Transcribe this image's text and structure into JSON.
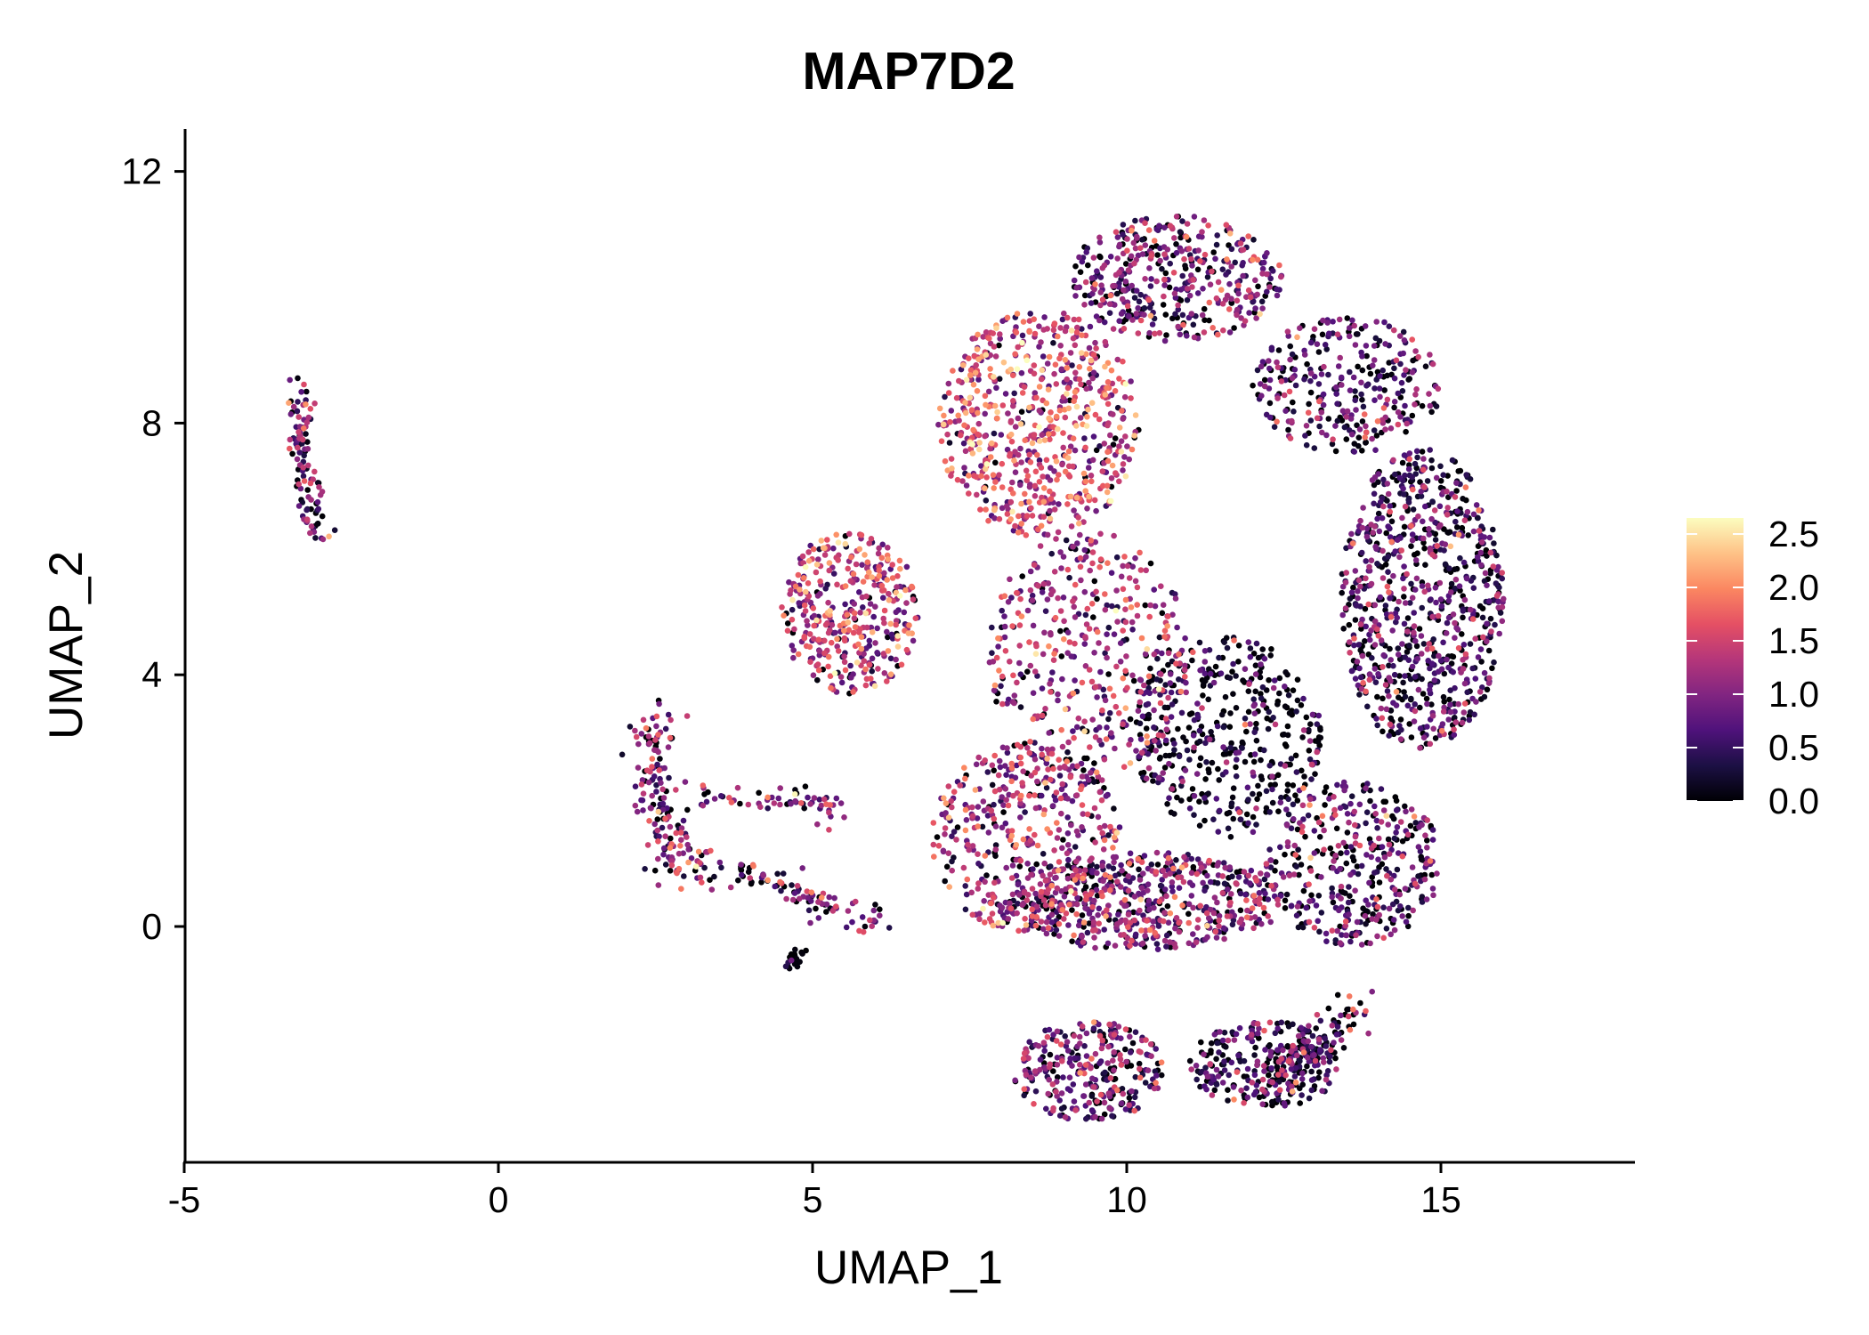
{
  "chart_data": {
    "type": "scatter",
    "title": "MAP7D2",
    "xlabel": "UMAP_1",
    "ylabel": "UMAP_2",
    "xlim": [
      -5,
      18
    ],
    "ylim": [
      -3.7,
      12.8
    ],
    "x_ticks": [
      -5,
      0,
      5,
      10,
      15
    ],
    "x_tick_labels": [
      "-5",
      "0",
      "5",
      "10",
      "15"
    ],
    "y_ticks": [
      0,
      4,
      8,
      12
    ],
    "y_tick_labels": [
      "0",
      "4",
      "8",
      "12"
    ],
    "grid": false,
    "legend": {
      "placement": "right",
      "ticks": [
        0.0,
        0.5,
        1.0,
        1.5,
        2.0,
        2.5
      ],
      "tick_labels": [
        "0.0",
        "0.5",
        "1.0",
        "1.5",
        "2.0",
        "2.5"
      ],
      "range": [
        0,
        2.65
      ]
    },
    "colormap": [
      "#000004",
      "#1c1044",
      "#4f127b",
      "#812581",
      "#b5367a",
      "#e55064",
      "#fb8761",
      "#fec287",
      "#fcfdbf"
    ],
    "regions": [
      {
        "name": "small cluster top-left",
        "shape": "strip",
        "points": [
          [
            -3.15,
            8.7
          ],
          [
            -3.1,
            7.5
          ],
          [
            -2.85,
            6.1
          ]
        ],
        "width": 0.22,
        "n": 110,
        "mean_expr": 0.8
      },
      {
        "name": "left cluster upper arc",
        "shape": "strip",
        "points": [
          [
            2.55,
            3.4
          ],
          [
            2.45,
            2.4
          ],
          [
            2.7,
            1.3
          ],
          [
            3.2,
            0.8
          ]
        ],
        "width": 0.35,
        "n": 170,
        "mean_expr": 0.9
      },
      {
        "name": "left cluster tail",
        "shape": "strip",
        "points": [
          [
            3.2,
            2.1
          ],
          [
            4.2,
            2.0
          ],
          [
            5.1,
            1.95
          ],
          [
            5.35,
            1.85
          ]
        ],
        "width": 0.22,
        "n": 60,
        "mean_expr": 1.0
      },
      {
        "name": "left cluster lower tail",
        "shape": "strip",
        "points": [
          [
            3.7,
            1.0
          ],
          [
            4.6,
            0.6
          ],
          [
            5.2,
            0.3
          ],
          [
            6.2,
            0.05
          ]
        ],
        "width": 0.25,
        "n": 90,
        "mean_expr": 0.7
      },
      {
        "name": "left cluster bottom blob",
        "shape": "strip",
        "points": [
          [
            4.8,
            -0.4
          ],
          [
            4.6,
            -0.65
          ]
        ],
        "width": 0.15,
        "n": 22,
        "mean_expr": 0.05
      },
      {
        "name": "main cluster left bulge",
        "shape": "ellipse",
        "center": [
          5.6,
          5.0
        ],
        "radii": [
          1.1,
          1.3
        ],
        "n": 380,
        "mean_expr": 1.3
      },
      {
        "name": "main cluster upper left",
        "shape": "ellipse",
        "center": [
          8.6,
          8.0
        ],
        "radii": [
          1.6,
          1.8
        ],
        "n": 650,
        "mean_expr": 1.4
      },
      {
        "name": "main cluster top",
        "shape": "ellipse",
        "center": [
          10.8,
          10.3
        ],
        "radii": [
          1.7,
          1.0
        ],
        "n": 420,
        "mean_expr": 0.9
      },
      {
        "name": "main cluster top right",
        "shape": "ellipse",
        "center": [
          13.5,
          8.6
        ],
        "radii": [
          1.5,
          1.1
        ],
        "n": 300,
        "mean_expr": 0.7
      },
      {
        "name": "main cluster right",
        "shape": "ellipse",
        "center": [
          14.7,
          5.2
        ],
        "radii": [
          1.3,
          2.4
        ],
        "n": 800,
        "mean_expr": 0.6
      },
      {
        "name": "main cluster center",
        "shape": "ellipse",
        "center": [
          9.4,
          4.3
        ],
        "radii": [
          1.6,
          2.0
        ],
        "n": 420,
        "mean_expr": 1.1
      },
      {
        "name": "main cluster center right",
        "shape": "ellipse",
        "center": [
          11.6,
          3.0
        ],
        "radii": [
          1.5,
          1.6
        ],
        "n": 420,
        "mean_expr": 0.3
      },
      {
        "name": "main cluster lower left",
        "shape": "ellipse",
        "center": [
          8.4,
          1.4
        ],
        "radii": [
          1.5,
          1.5
        ],
        "n": 430,
        "mean_expr": 1.1
      },
      {
        "name": "main cluster lower center",
        "shape": "ellipse",
        "center": [
          10.3,
          0.4
        ],
        "radii": [
          2.2,
          0.8
        ],
        "n": 550,
        "mean_expr": 0.9
      },
      {
        "name": "main cluster lower right",
        "shape": "ellipse",
        "center": [
          13.6,
          1.0
        ],
        "radii": [
          1.4,
          1.3
        ],
        "n": 380,
        "mean_expr": 0.7
      },
      {
        "name": "bottom left lobe",
        "shape": "ellipse",
        "center": [
          9.4,
          -2.3
        ],
        "radii": [
          1.2,
          0.8
        ],
        "n": 300,
        "mean_expr": 0.8
      },
      {
        "name": "bottom right lobe",
        "shape": "ellipse",
        "center": [
          12.2,
          -2.2
        ],
        "radii": [
          1.2,
          0.7
        ],
        "n": 260,
        "mean_expr": 0.5
      },
      {
        "name": "bottom right arm",
        "shape": "strip",
        "points": [
          [
            12.0,
            -2.6
          ],
          [
            12.9,
            -2.0
          ],
          [
            13.7,
            -1.3
          ]
        ],
        "width": 0.35,
        "n": 110,
        "mean_expr": 0.7
      }
    ]
  }
}
